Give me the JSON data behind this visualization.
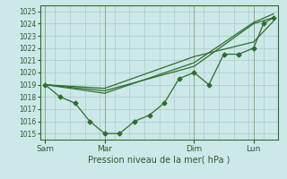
{
  "title": "Pression niveau de la mer( hPa )",
  "bg_color": "#cce8e8",
  "grid_color": "#aacccc",
  "line_color": "#2d6e2d",
  "vline_color": "#8aaa8a",
  "ylim": [
    1014.5,
    1025.5
  ],
  "yticks": [
    1015,
    1016,
    1017,
    1018,
    1019,
    1020,
    1021,
    1022,
    1023,
    1024,
    1025
  ],
  "xtick_labels": [
    "Sam",
    "Mar",
    "Dim",
    "Lun"
  ],
  "xtick_positions": [
    0,
    6,
    15,
    21
  ],
  "xlim": [
    -0.5,
    23.5
  ],
  "series1_x": [
    0,
    1.5,
    3,
    4.5,
    6,
    7.5,
    9,
    10.5,
    12,
    13.5,
    15,
    16.5,
    18,
    19.5,
    21,
    22,
    23
  ],
  "series1_y": [
    1019.0,
    1018.0,
    1017.5,
    1016.0,
    1015.0,
    1015.0,
    1016.0,
    1016.5,
    1017.5,
    1019.5,
    1020.0,
    1019.0,
    1021.5,
    1021.5,
    1022.0,
    1024.0,
    1024.5
  ],
  "series2_x": [
    0,
    6,
    15,
    21,
    23
  ],
  "series2_y": [
    1019.0,
    1018.5,
    1020.5,
    1024.0,
    1024.5
  ],
  "series3_x": [
    0,
    6,
    15,
    21,
    23
  ],
  "series3_y": [
    1019.0,
    1018.3,
    1020.8,
    1024.1,
    1024.8
  ],
  "series4_x": [
    0,
    6,
    15,
    21,
    23
  ],
  "series4_y": [
    1019.0,
    1018.7,
    1021.3,
    1022.5,
    1024.2
  ],
  "vline_x_positions": [
    0,
    6,
    15,
    21
  ],
  "marker_size": 2.5,
  "ylabel_fontsize": 5.5,
  "xlabel_fontsize": 7.0,
  "xtick_fontsize": 6.5
}
